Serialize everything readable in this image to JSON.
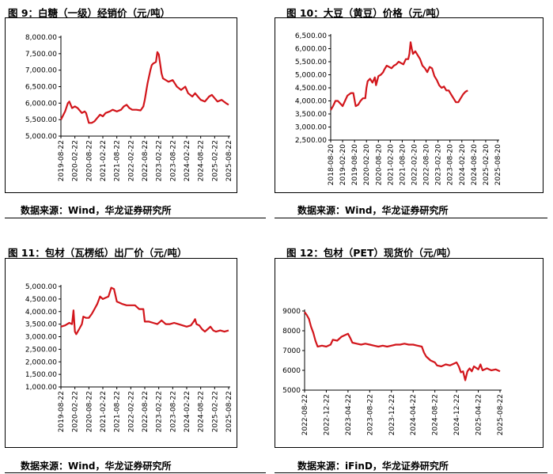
{
  "panels": [
    {
      "title": "图 9：白糖（一级）经销价（元/吨）",
      "source": "数据来源：Wind，华龙证券研究所"
    },
    {
      "title": "图 10：大豆（黄豆）价格（元/吨）",
      "source": "数据来源：Wind，华龙证券研究所"
    },
    {
      "title": "图 11：包材（瓦楞纸）出厂价（元/吨）",
      "source": "数据来源：Wind，华龙证券研究所"
    },
    {
      "title": "图 12：包材（PET）现货价（元/吨）",
      "source": "数据来源：iFinD，华龙证券研究所"
    }
  ],
  "colors": {
    "line": "#d2151b",
    "axis": "#000000"
  },
  "chart_data": [
    {
      "type": "line",
      "title": "图 9：白糖（一级）经销价（元/吨）",
      "ylim": [
        5000,
        8000
      ],
      "yticks": [
        "5,000.00",
        "5,500.00",
        "6,000.00",
        "6,500.00",
        "7,000.00",
        "7,500.00",
        "8,000.00"
      ],
      "xticks": [
        "2019-08-22",
        "2020-02-22",
        "2020-08-22",
        "2021-02-22",
        "2021-08-22",
        "2022-02-22",
        "2022-08-22",
        "2023-02-22",
        "2023-08-22",
        "2024-02-22",
        "2024-08-22",
        "2025-02-22",
        "2025-08-22"
      ],
      "series": [
        {
          "points": [
            [
              0,
              5500
            ],
            [
              0.3,
              5750
            ],
            [
              0.5,
              6000
            ],
            [
              0.6,
              6050
            ],
            [
              0.8,
              5850
            ],
            [
              1.0,
              5900
            ],
            [
              1.2,
              5850
            ],
            [
              1.5,
              5700
            ],
            [
              1.7,
              5750
            ],
            [
              1.8,
              5700
            ],
            [
              2.0,
              5400
            ],
            [
              2.2,
              5400
            ],
            [
              2.4,
              5450
            ],
            [
              2.6,
              5550
            ],
            [
              2.8,
              5650
            ],
            [
              3.0,
              5600
            ],
            [
              3.2,
              5700
            ],
            [
              3.5,
              5750
            ],
            [
              3.7,
              5800
            ],
            [
              4.0,
              5750
            ],
            [
              4.3,
              5800
            ],
            [
              4.5,
              5900
            ],
            [
              4.7,
              5950
            ],
            [
              4.9,
              5850
            ],
            [
              5.1,
              5800
            ],
            [
              5.4,
              5800
            ],
            [
              5.7,
              5780
            ],
            [
              5.9,
              5900
            ],
            [
              6.0,
              6100
            ],
            [
              6.2,
              6600
            ],
            [
              6.4,
              7000
            ],
            [
              6.5,
              7150
            ],
            [
              6.6,
              7200
            ],
            [
              6.8,
              7250
            ],
            [
              6.9,
              7550
            ],
            [
              7.0,
              7480
            ],
            [
              7.1,
              7200
            ],
            [
              7.2,
              6900
            ],
            [
              7.3,
              6750
            ],
            [
              7.5,
              6700
            ],
            [
              7.7,
              6650
            ],
            [
              8.0,
              6700
            ],
            [
              8.3,
              6500
            ],
            [
              8.6,
              6400
            ],
            [
              8.9,
              6500
            ],
            [
              9.1,
              6300
            ],
            [
              9.4,
              6200
            ],
            [
              9.6,
              6300
            ],
            [
              9.8,
              6200
            ],
            [
              10.0,
              6100
            ],
            [
              10.3,
              6050
            ],
            [
              10.6,
              6200
            ],
            [
              10.8,
              6250
            ],
            [
              11.0,
              6150
            ],
            [
              11.2,
              6050
            ],
            [
              11.5,
              6100
            ],
            [
              11.8,
              6000
            ],
            [
              12.0,
              5950
            ]
          ]
        }
      ]
    },
    {
      "type": "line",
      "title": "图 10：大豆（黄豆）价格（元/吨）",
      "ylim": [
        2500,
        6500
      ],
      "yticks": [
        "2,500.00",
        "3,000.00",
        "3,500.00",
        "4,000.00",
        "4,500.00",
        "5,000.00",
        "5,500.00",
        "6,000.00",
        "6,500.00"
      ],
      "xticks": [
        "2018-08-20",
        "2019-02-20",
        "2019-08-20",
        "2020-02-20",
        "2020-08-20",
        "2021-02-20",
        "2021-08-20",
        "2022-02-20",
        "2022-08-20",
        "2023-02-20",
        "2023-08-20",
        "2024-02-20",
        "2024-08-20",
        "2025-02-20",
        "2025-08-20"
      ],
      "series": [
        {
          "points": [
            [
              0,
              3650
            ],
            [
              0.2,
              3800
            ],
            [
              0.4,
              4000
            ],
            [
              0.6,
              4000
            ],
            [
              0.9,
              3850
            ],
            [
              1.0,
              3800
            ],
            [
              1.2,
              4000
            ],
            [
              1.4,
              4200
            ],
            [
              1.7,
              4300
            ],
            [
              1.9,
              4300
            ],
            [
              2.1,
              3800
            ],
            [
              2.3,
              3850
            ],
            [
              2.5,
              4000
            ],
            [
              2.7,
              4100
            ],
            [
              2.9,
              4100
            ],
            [
              3.0,
              4500
            ],
            [
              3.1,
              4750
            ],
            [
              3.3,
              4850
            ],
            [
              3.5,
              4700
            ],
            [
              3.7,
              4900
            ],
            [
              3.8,
              4600
            ],
            [
              4.0,
              4950
            ],
            [
              4.2,
              5000
            ],
            [
              4.4,
              5100
            ],
            [
              4.5,
              5200
            ],
            [
              4.7,
              5350
            ],
            [
              4.9,
              5300
            ],
            [
              5.1,
              5250
            ],
            [
              5.3,
              5350
            ],
            [
              5.5,
              5400
            ],
            [
              5.7,
              5500
            ],
            [
              5.9,
              5450
            ],
            [
              6.1,
              5400
            ],
            [
              6.3,
              5600
            ],
            [
              6.5,
              5600
            ],
            [
              6.6,
              5800
            ],
            [
              6.7,
              6250
            ],
            [
              6.8,
              6000
            ],
            [
              6.9,
              5800
            ],
            [
              7.1,
              5900
            ],
            [
              7.3,
              5750
            ],
            [
              7.5,
              5600
            ],
            [
              7.7,
              5350
            ],
            [
              7.9,
              5250
            ],
            [
              8.1,
              5100
            ],
            [
              8.3,
              5300
            ],
            [
              8.5,
              5250
            ],
            [
              8.7,
              4950
            ],
            [
              8.9,
              4800
            ],
            [
              9.1,
              4600
            ],
            [
              9.3,
              4500
            ],
            [
              9.5,
              4550
            ],
            [
              9.7,
              4400
            ],
            [
              9.9,
              4400
            ],
            [
              10.1,
              4250
            ],
            [
              10.3,
              4100
            ],
            [
              10.5,
              3950
            ],
            [
              10.7,
              3950
            ],
            [
              10.9,
              4100
            ],
            [
              11.1,
              4250
            ],
            [
              11.3,
              4350
            ],
            [
              11.5,
              4400
            ]
          ]
        }
      ]
    },
    {
      "type": "line",
      "title": "图 11：包材（瓦楞纸）出厂价（元/吨）",
      "ylim": [
        1000,
        5000
      ],
      "yticks": [
        "1,000.00",
        "1,500.00",
        "2,000.00",
        "2,500.00",
        "3,000.00",
        "3,500.00",
        "4,000.00",
        "4,500.00",
        "5,000.00"
      ],
      "xticks": [
        "2019-08-22",
        "2020-02-22",
        "2020-08-22",
        "2021-02-22",
        "2021-08-22",
        "2022-02-22",
        "2022-08-22",
        "2023-02-22",
        "2023-08-22",
        "2024-02-22",
        "2024-08-22",
        "2025-02-22",
        "2025-08-22"
      ],
      "series": [
        {
          "points": [
            [
              0,
              3400
            ],
            [
              0.3,
              3450
            ],
            [
              0.6,
              3550
            ],
            [
              0.8,
              3500
            ],
            [
              0.9,
              4050
            ],
            [
              1.0,
              3200
            ],
            [
              1.1,
              3100
            ],
            [
              1.3,
              3300
            ],
            [
              1.5,
              3500
            ],
            [
              1.6,
              3800
            ],
            [
              1.8,
              3750
            ],
            [
              2.0,
              3750
            ],
            [
              2.2,
              3900
            ],
            [
              2.4,
              4100
            ],
            [
              2.6,
              4300
            ],
            [
              2.8,
              4600
            ],
            [
              3.0,
              4500
            ],
            [
              3.2,
              4550
            ],
            [
              3.4,
              4600
            ],
            [
              3.6,
              4950
            ],
            [
              3.8,
              4900
            ],
            [
              3.9,
              4650
            ],
            [
              4.0,
              4400
            ],
            [
              4.2,
              4350
            ],
            [
              4.4,
              4300
            ],
            [
              4.7,
              4250
            ],
            [
              5.0,
              4250
            ],
            [
              5.3,
              4250
            ],
            [
              5.6,
              4100
            ],
            [
              5.9,
              4100
            ],
            [
              6.0,
              3600
            ],
            [
              6.3,
              3600
            ],
            [
              6.6,
              3550
            ],
            [
              6.9,
              3500
            ],
            [
              7.2,
              3650
            ],
            [
              7.5,
              3500
            ],
            [
              7.8,
              3500
            ],
            [
              8.1,
              3550
            ],
            [
              8.4,
              3500
            ],
            [
              8.7,
              3450
            ],
            [
              9.0,
              3400
            ],
            [
              9.3,
              3450
            ],
            [
              9.5,
              3600
            ],
            [
              9.6,
              3700
            ],
            [
              9.7,
              3500
            ],
            [
              9.9,
              3450
            ],
            [
              10.1,
              3300
            ],
            [
              10.3,
              3200
            ],
            [
              10.5,
              3300
            ],
            [
              10.7,
              3400
            ],
            [
              10.9,
              3250
            ],
            [
              11.1,
              3200
            ],
            [
              11.4,
              3250
            ],
            [
              11.7,
              3200
            ],
            [
              12.0,
              3250
            ]
          ]
        }
      ]
    },
    {
      "type": "line",
      "title": "图 12：包材（PET）现货价（元/吨）",
      "ylim": [
        5000,
        9000
      ],
      "yticks": [
        "5000",
        "6000",
        "7000",
        "8000",
        "9000"
      ],
      "xticks": [
        "2022-08-22",
        "2022-12-22",
        "2023-04-22",
        "2023-08-22",
        "2023-12-22",
        "2024-04-22",
        "2024-08-22",
        "2024-12-22",
        "2025-04-22",
        "2025-08-22"
      ],
      "series": [
        {
          "points": [
            [
              0,
              8950
            ],
            [
              0.1,
              8800
            ],
            [
              0.2,
              8600
            ],
            [
              0.3,
              8200
            ],
            [
              0.4,
              7900
            ],
            [
              0.5,
              7500
            ],
            [
              0.6,
              7200
            ],
            [
              0.8,
              7250
            ],
            [
              1.0,
              7200
            ],
            [
              1.2,
              7300
            ],
            [
              1.3,
              7550
            ],
            [
              1.5,
              7500
            ],
            [
              1.7,
              7700
            ],
            [
              1.9,
              7800
            ],
            [
              2.0,
              7850
            ],
            [
              2.1,
              7650
            ],
            [
              2.2,
              7400
            ],
            [
              2.4,
              7350
            ],
            [
              2.6,
              7300
            ],
            [
              2.8,
              7350
            ],
            [
              3.0,
              7300
            ],
            [
              3.2,
              7250
            ],
            [
              3.4,
              7200
            ],
            [
              3.6,
              7250
            ],
            [
              3.8,
              7200
            ],
            [
              4.0,
              7250
            ],
            [
              4.2,
              7300
            ],
            [
              4.4,
              7300
            ],
            [
              4.6,
              7350
            ],
            [
              4.8,
              7300
            ],
            [
              5.0,
              7300
            ],
            [
              5.2,
              7250
            ],
            [
              5.4,
              7200
            ],
            [
              5.5,
              6900
            ],
            [
              5.6,
              6700
            ],
            [
              5.8,
              6500
            ],
            [
              6.0,
              6400
            ],
            [
              6.1,
              6250
            ],
            [
              6.3,
              6200
            ],
            [
              6.5,
              6300
            ],
            [
              6.7,
              6250
            ],
            [
              6.9,
              6350
            ],
            [
              7.0,
              6400
            ],
            [
              7.1,
              6200
            ],
            [
              7.2,
              5900
            ],
            [
              7.3,
              5950
            ],
            [
              7.4,
              5500
            ],
            [
              7.5,
              5950
            ],
            [
              7.6,
              6100
            ],
            [
              7.7,
              5950
            ],
            [
              7.8,
              6200
            ],
            [
              8.0,
              6050
            ],
            [
              8.1,
              6300
            ],
            [
              8.2,
              6000
            ],
            [
              8.4,
              6100
            ],
            [
              8.6,
              6000
            ],
            [
              8.8,
              6050
            ],
            [
              9.0,
              5950
            ]
          ]
        }
      ]
    }
  ]
}
